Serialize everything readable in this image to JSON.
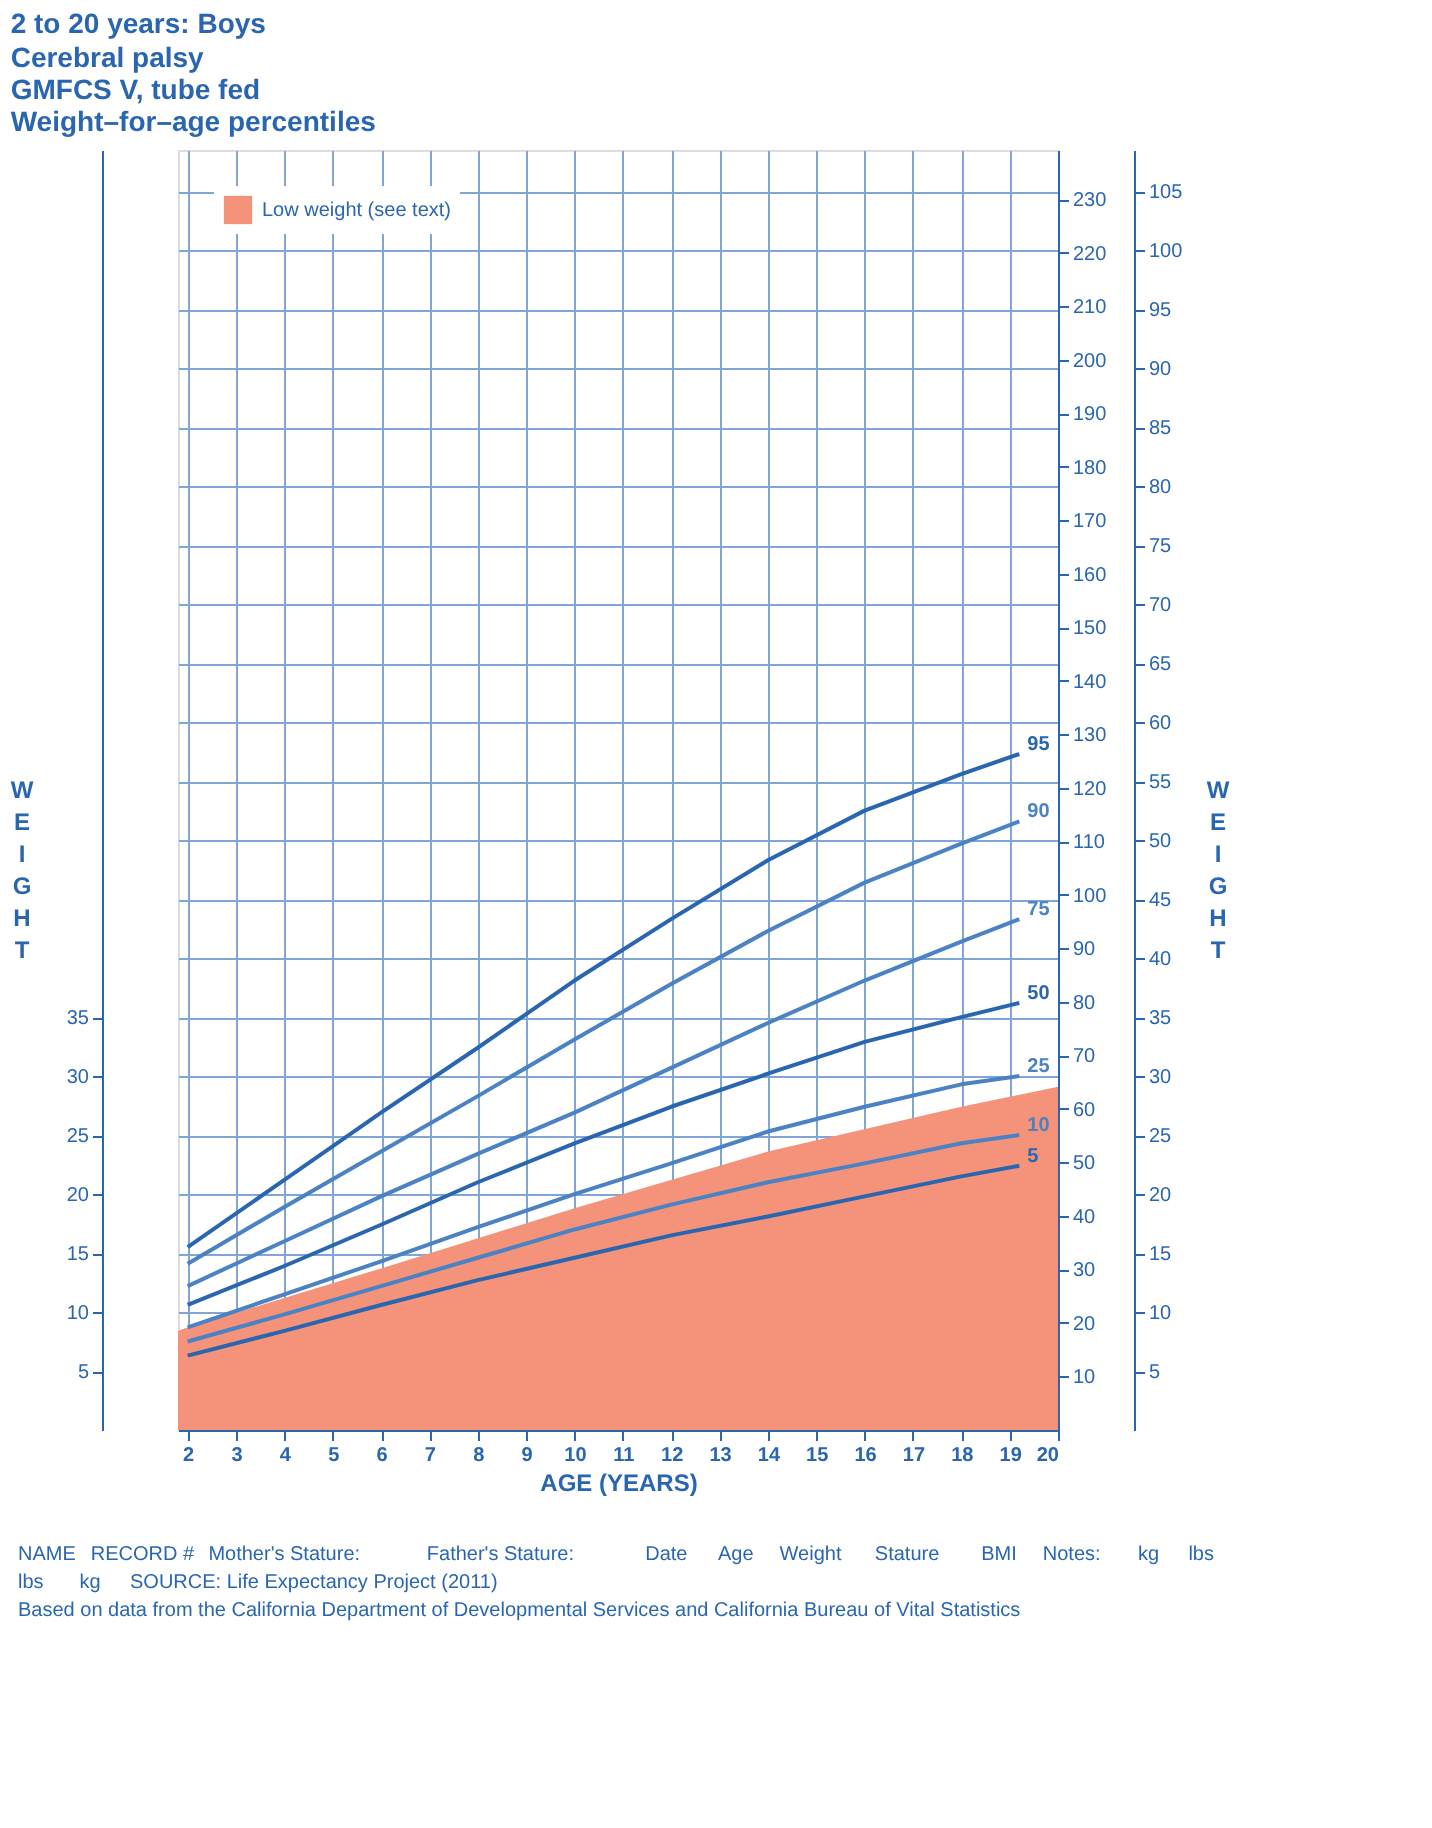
{
  "chart_data": {
    "type": "line",
    "title": "2 to 20 years: Boys",
    "subtitle": "Cerebral palsy\nGMFCS V, tube fed\nWeight–for–age percentiles",
    "xlabel": "AGE (YEARS)",
    "ylabel": "WEIGHT",
    "y2label": "WEIGHT",
    "xlim": [
      1.8,
      20
    ],
    "xticks": [
      2,
      3,
      4,
      5,
      6,
      7,
      8,
      9,
      10,
      11,
      12,
      13,
      14,
      15,
      16,
      17,
      18,
      19,
      20
    ],
    "ylim": [
      0,
      108.5
    ],
    "yticks": [
      5,
      10,
      15,
      20,
      25,
      30,
      35
    ],
    "y2lim": [
      0,
      108.5
    ],
    "y2ticks": [
      5,
      10,
      15,
      20,
      25,
      30,
      35,
      40,
      45,
      50,
      55,
      60,
      65,
      70,
      75,
      80,
      85,
      90,
      95,
      100,
      105
    ],
    "y3lim": [
      0,
      239.2
    ],
    "y3ticks": [
      10,
      20,
      30,
      40,
      50,
      60,
      70,
      80,
      90,
      100,
      110,
      120,
      130,
      140,
      150,
      160,
      170,
      180,
      190,
      200,
      210,
      220,
      230
    ],
    "grid": true,
    "legend": "top left",
    "line_style": "solid",
    "marker": "none",
    "annotations": [
      "NAME",
      "RECORD #",
      "Mother's Stature:",
      "Father's Stature:",
      "Date",
      "Age",
      "Weight",
      "Stature",
      "BMI",
      "Notes:",
      "kg",
      "lbs",
      "lbs",
      "kg",
      "SOURCE: Life Expectancy Project (2011)",
      "Based on data from the California Department of Developmental Services and California Bureau of Vital Statistics"
    ],
    "series": [
      {
        "name": "Low weight (see text)",
        "type": "area",
        "color": "#f4937a",
        "x": [
          1.8,
          2,
          6,
          10,
          14,
          18,
          20
        ],
        "values": [
          8.4,
          8.7,
          13.7,
          18.8,
          23.6,
          27.4,
          29.1
        ]
      },
      {
        "name": "95",
        "color": "#2a66b0",
        "x": [
          2,
          4,
          6,
          8,
          10,
          12,
          14,
          16,
          18,
          19.2
        ],
        "values": [
          15.5,
          21.2,
          26.9,
          32.4,
          38.1,
          43.3,
          48.3,
          52.5,
          55.6,
          57.3
        ]
      },
      {
        "name": "90",
        "color": "#4a82c3",
        "x": [
          2,
          4,
          6,
          8,
          10,
          12,
          14,
          16,
          18,
          19.2
        ],
        "values": [
          14.1,
          18.9,
          23.6,
          28.3,
          33.1,
          37.8,
          42.3,
          46.4,
          49.7,
          51.6
        ]
      },
      {
        "name": "75",
        "color": "#4a82c3",
        "x": [
          2,
          4,
          6,
          8,
          10,
          12,
          14,
          16,
          18,
          19.2
        ],
        "values": [
          12.2,
          16.0,
          19.8,
          23.4,
          26.9,
          30.7,
          34.5,
          38.1,
          41.4,
          43.3
        ]
      },
      {
        "name": "50",
        "color": "#2a66b0",
        "x": [
          2,
          4,
          6,
          8,
          10,
          12,
          14,
          16,
          18,
          19.2
        ],
        "values": [
          10.6,
          13.9,
          17.4,
          21.0,
          24.3,
          27.4,
          30.2,
          32.9,
          35.0,
          36.2
        ]
      },
      {
        "name": "25",
        "color": "#4a82c3",
        "x": [
          2,
          4,
          6,
          8,
          10,
          12,
          14,
          16,
          18,
          19.2
        ],
        "values": [
          8.7,
          11.5,
          14.3,
          17.2,
          20.0,
          22.6,
          25.3,
          27.4,
          29.3,
          30.0
        ]
      },
      {
        "name": "10",
        "color": "#4a82c3",
        "x": [
          2,
          4,
          6,
          8,
          10,
          12,
          14,
          16,
          18,
          19.2
        ],
        "values": [
          7.5,
          9.8,
          12.2,
          14.6,
          17.0,
          19.1,
          21.0,
          22.6,
          24.3,
          25.0
        ]
      },
      {
        "name": "5",
        "color": "#2a66b0",
        "x": [
          2,
          4,
          6,
          8,
          10,
          12,
          14,
          16,
          18,
          19.2
        ],
        "values": [
          6.3,
          8.4,
          10.6,
          12.7,
          14.6,
          16.5,
          18.1,
          19.8,
          21.5,
          22.4
        ]
      }
    ]
  }
}
